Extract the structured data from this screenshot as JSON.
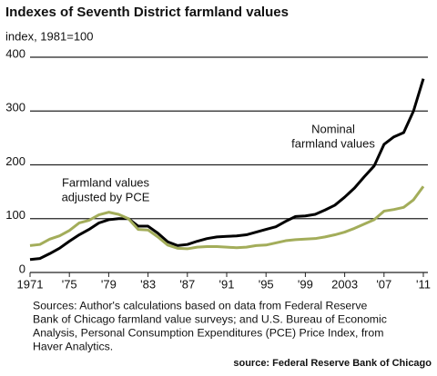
{
  "chart_data": {
    "type": "line",
    "title": "Indexes of Seventh District farmland values",
    "y_label": "index, 1981=100",
    "x": [
      1971,
      1972,
      1973,
      1974,
      1975,
      1976,
      1977,
      1978,
      1979,
      1980,
      1981,
      1982,
      1983,
      1984,
      1985,
      1986,
      1987,
      1988,
      1989,
      1990,
      1991,
      1992,
      1993,
      1994,
      1995,
      1996,
      1997,
      1998,
      1999,
      2000,
      2001,
      2002,
      2003,
      2004,
      2005,
      2006,
      2007,
      2008,
      2009,
      2010,
      2011
    ],
    "series": [
      {
        "label": [
          "Nominal",
          "farmland values"
        ],
        "color": "#000000",
        "values": [
          24,
          26,
          35,
          45,
          58,
          70,
          80,
          92,
          98,
          100,
          100,
          86,
          86,
          73,
          57,
          50,
          52,
          58,
          63,
          66,
          67,
          68,
          70,
          75,
          80,
          85,
          95,
          104,
          105,
          108,
          116,
          125,
          140,
          157,
          178,
          198,
          238,
          252,
          260,
          300,
          360
        ]
      },
      {
        "label": [
          "Farmland values",
          "adjusted by PCE"
        ],
        "color": "#a3ad5a",
        "values": [
          50,
          52,
          62,
          68,
          78,
          92,
          97,
          107,
          112,
          108,
          100,
          80,
          79,
          66,
          51,
          45,
          44,
          47,
          48,
          48,
          47,
          46,
          47,
          50,
          51,
          55,
          59,
          61,
          62,
          63,
          66,
          70,
          75,
          82,
          90,
          98,
          114,
          117,
          121,
          135,
          160
        ]
      }
    ],
    "xlim": [
      1971,
      2011
    ],
    "xticks": [
      1971,
      {
        "value": 1975,
        "label": "'75"
      },
      {
        "value": 1979,
        "label": "'79"
      },
      {
        "value": 1983,
        "label": "'83"
      },
      {
        "value": 1987,
        "label": "'87"
      },
      {
        "value": 1991,
        "label": "'91"
      },
      {
        "value": 1995,
        "label": "'95"
      },
      {
        "value": 1999,
        "label": "'99"
      },
      2003,
      {
        "value": 2007,
        "label": "'07"
      },
      {
        "value": 2011,
        "label": "'11"
      }
    ],
    "ylim": [
      0,
      400
    ],
    "yticks": [
      0,
      100,
      200,
      300,
      400
    ],
    "grid": true,
    "note": [
      "Sources: Author's calculations based on data from Federal Reserve",
      "Bank of Chicago farmland value surveys; and U.S. Bureau of Economic",
      "Analysis, Personal Consumption Expenditures (PCE) Price Index, from",
      "Haver Analytics."
    ],
    "source": "source: Federal Reserve Bank of Chicago"
  }
}
